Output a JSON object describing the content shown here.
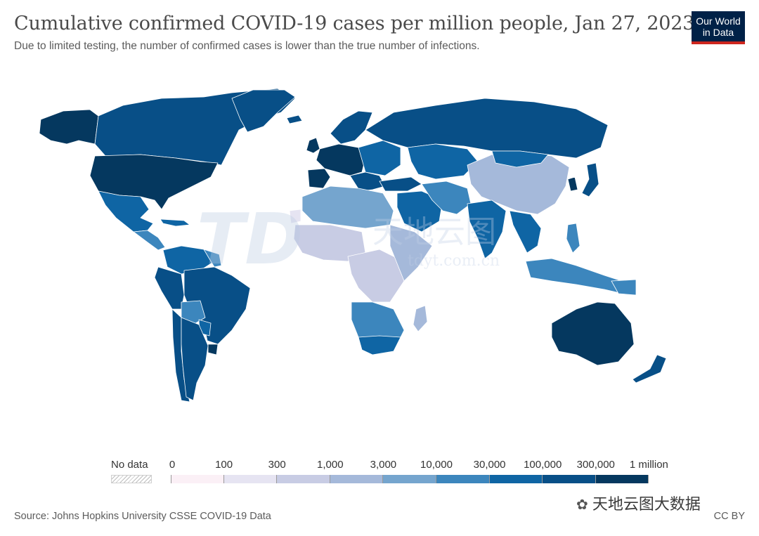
{
  "header": {
    "title": "Cumulative confirmed COVID-19 cases per million people, Jan 27, 2023",
    "subtitle": "Due to limited testing, the number of confirmed cases is lower than the true number of infections."
  },
  "logo": {
    "line1": "Our World",
    "line2": "in Data",
    "background": "#002147",
    "accent": "#ce261e"
  },
  "legend": {
    "no_data_label": "No data",
    "ticks": [
      "0",
      "100",
      "300",
      "1,000",
      "3,000",
      "10,000",
      "30,000",
      "100,000",
      "300,000",
      "1 million"
    ],
    "colors": [
      "#fbf0f6",
      "#e6e4f2",
      "#c8cce4",
      "#a5b9da",
      "#75a5ce",
      "#3c86bd",
      "#0f65a4",
      "#084f87",
      "#05385f"
    ]
  },
  "footer": {
    "source": "Source: Johns Hopkins University CSSE COVID-19 Data",
    "license": "CC BY"
  },
  "watermarks": {
    "center_logo": "TD",
    "center_cn": "天地云图",
    "center_url": "tdyt.com.cn",
    "wechat": "天地云图大数据"
  }
}
